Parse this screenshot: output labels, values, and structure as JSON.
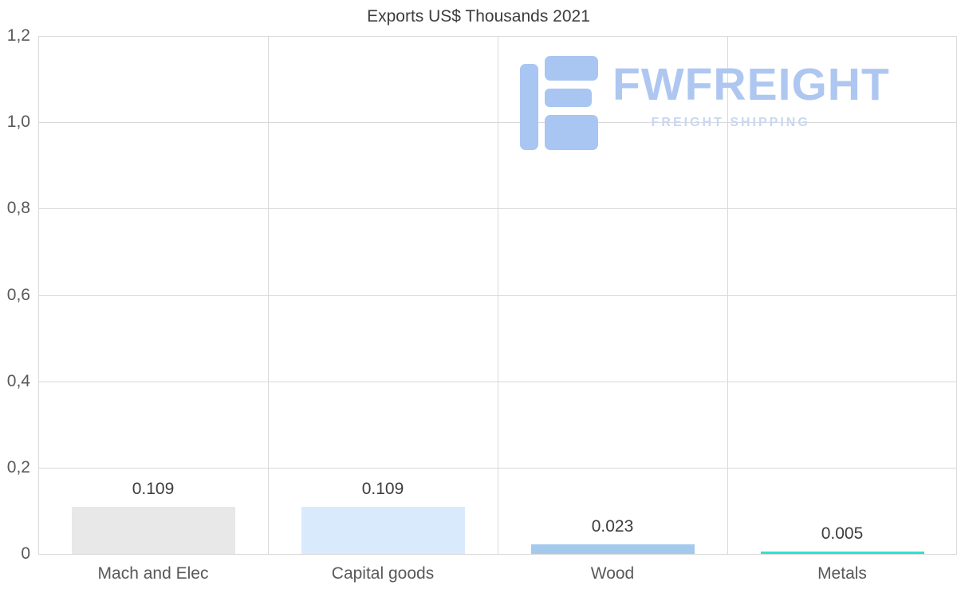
{
  "chart_data": {
    "type": "bar",
    "title": "Exports US$ Thousands 2021",
    "categories": [
      "Mach and Elec",
      "Capital goods",
      "Wood",
      "Metals"
    ],
    "values": [
      0.109,
      0.109,
      0.023,
      0.005
    ],
    "value_labels": [
      "0.109",
      "0.109",
      "0.023",
      "0.005"
    ],
    "bar_colors": [
      "#e8e8e8",
      "#d9eafc",
      "#a5c9ed",
      "#2de1ce"
    ],
    "ylim": [
      0,
      1.2
    ],
    "yticks": [
      0,
      0.2,
      0.4,
      0.6,
      0.8,
      1.0,
      1.2
    ],
    "ytick_labels": [
      "0",
      "0,2",
      "0,4",
      "0,6",
      "0,8",
      "1,0",
      "1,2"
    ],
    "xlabel": "",
    "ylabel": "",
    "grid": true,
    "legend_position": "none"
  },
  "watermark": {
    "brand": "FWFREIGHT",
    "tagline": "FREIGHT SHIPPING",
    "logo_color": "#a9c6f2",
    "brand_color": "#aec7f1",
    "tagline_color": "#c8d7f3"
  }
}
